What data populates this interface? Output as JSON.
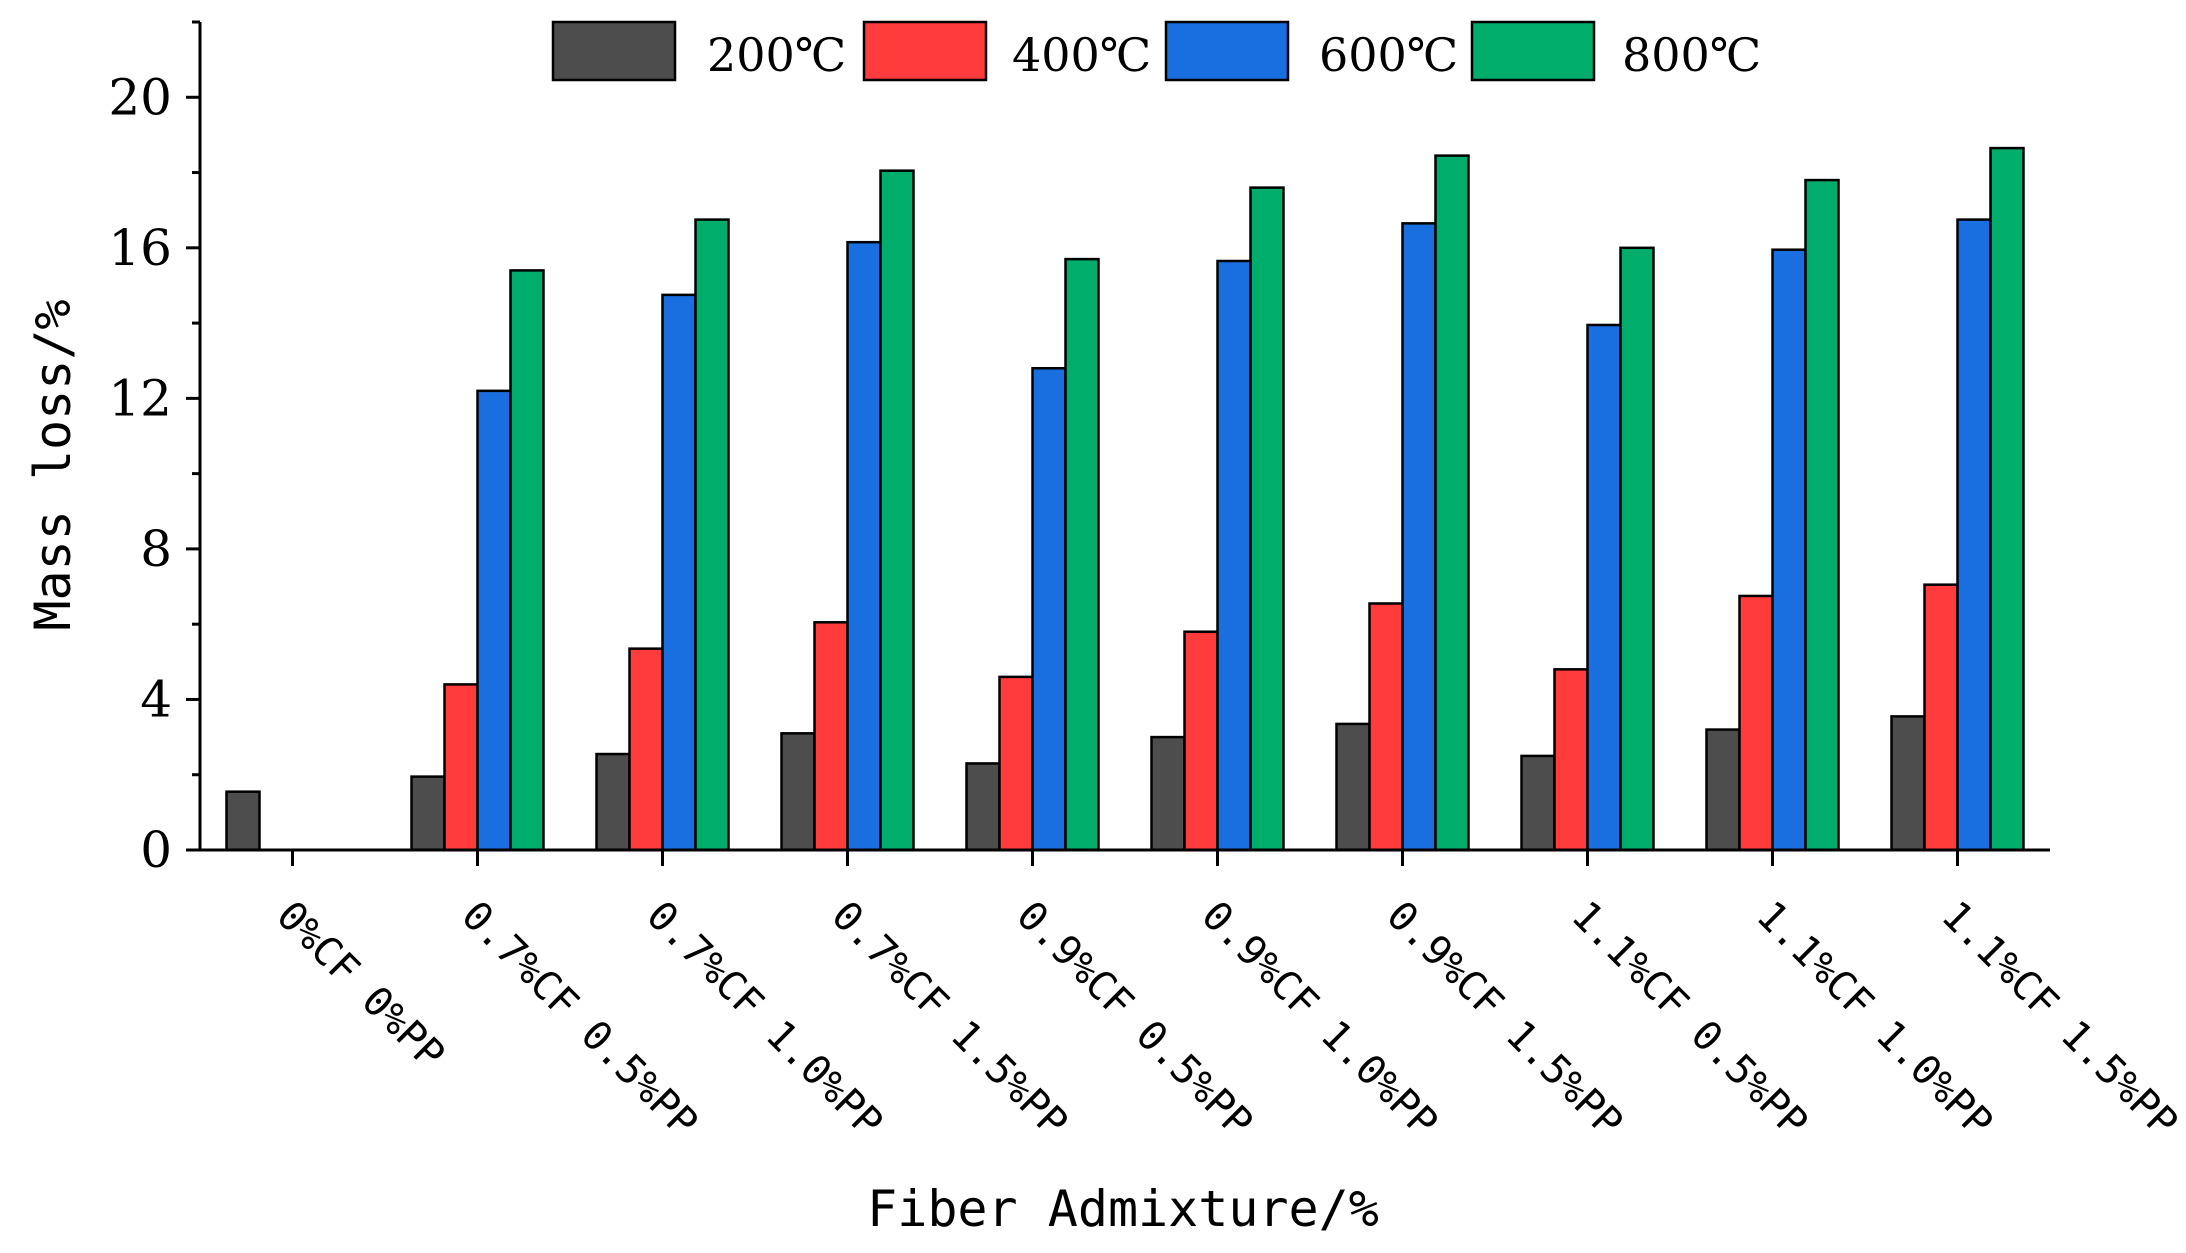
{
  "chart_data": {
    "type": "bar",
    "xlabel": "Fiber Admixture/%",
    "ylabel": "Mass loss/%",
    "ylim": [
      0,
      22
    ],
    "yticks": [
      0,
      4,
      8,
      12,
      16,
      20
    ],
    "ytick_labels": [
      "0",
      "4",
      "8",
      "12",
      "16",
      "20"
    ],
    "legend_position": "top",
    "categories": [
      "0%CF 0%PP",
      "0.7%CF 0.5%PP",
      "0.7%CF 1.0%PP",
      "0.7%CF 1.5%PP",
      "0.9%CF 0.5%PP",
      "0.9%CF 1.0%PP",
      "0.9%CF 1.5%PP",
      "1.1%CF 0.5%PP",
      "1.1%CF 1.0%PP",
      "1.1%CF 1.5%PP"
    ],
    "series": [
      {
        "name": "200℃",
        "color": "#4d4d4d",
        "values": [
          1.55,
          1.95,
          2.55,
          3.1,
          2.3,
          3.0,
          3.35,
          2.5,
          3.2,
          3.55
        ]
      },
      {
        "name": "400℃",
        "color": "#ff3b3b",
        "values": [
          0,
          4.4,
          5.35,
          6.05,
          4.6,
          5.8,
          6.55,
          4.8,
          6.75,
          7.05
        ]
      },
      {
        "name": "600℃",
        "color": "#1a6fe0",
        "values": [
          0,
          12.2,
          14.75,
          16.15,
          12.8,
          15.65,
          16.65,
          13.95,
          15.95,
          16.75
        ]
      },
      {
        "name": "800℃",
        "color": "#00ad6b",
        "values": [
          0,
          15.4,
          16.75,
          18.05,
          15.7,
          17.6,
          18.45,
          16.0,
          17.8,
          18.65
        ]
      }
    ]
  }
}
